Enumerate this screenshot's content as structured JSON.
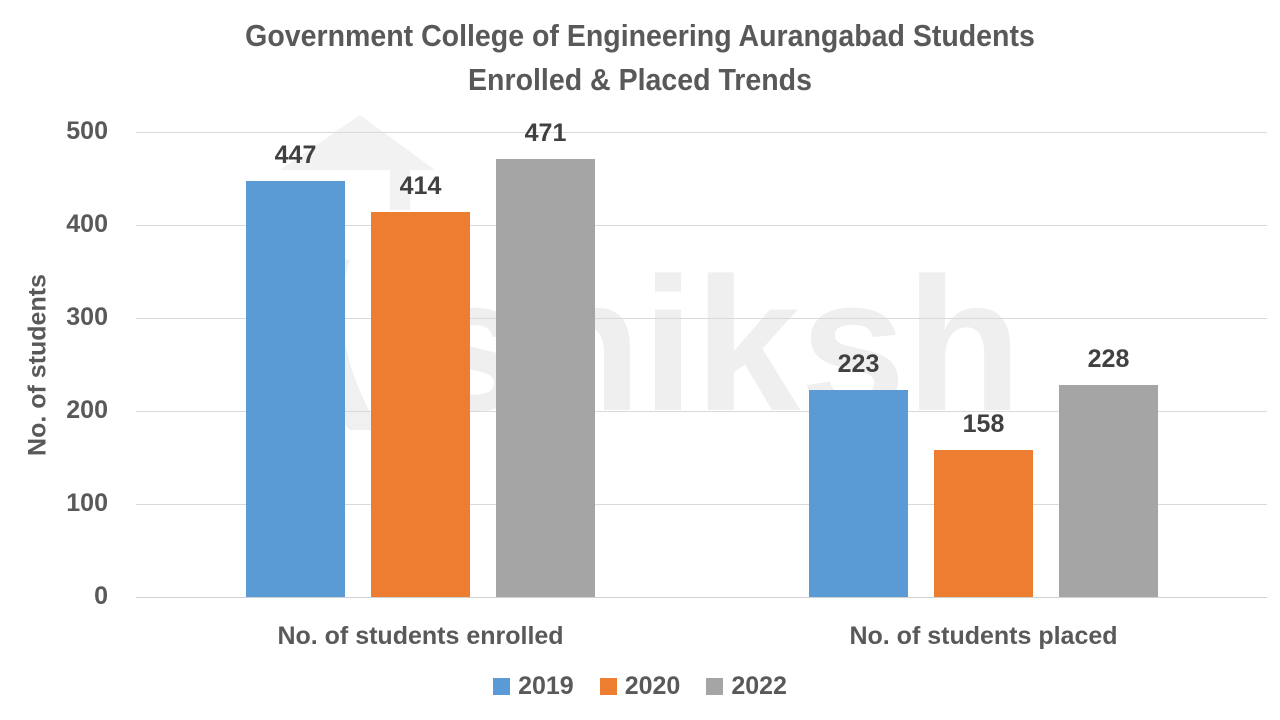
{
  "chart_data": {
    "type": "bar",
    "title": "Government College of Engineering Aurangabad Students Enrolled & Placed Trends",
    "title_lines": [
      "Government College of Engineering Aurangabad Students",
      "Enrolled & Placed Trends"
    ],
    "xlabel": "",
    "ylabel": "No. of students",
    "ylim": [
      0,
      500
    ],
    "yticks": [
      0,
      100,
      200,
      300,
      400,
      500
    ],
    "grid": true,
    "legend_position": "bottom",
    "categories": [
      "No. of students enrolled",
      "No. of students placed"
    ],
    "series": [
      {
        "name": "2019",
        "color": "#5b9bd5",
        "values": [
          447,
          223
        ]
      },
      {
        "name": "2020",
        "color": "#ed7d31",
        "values": [
          414,
          158
        ]
      },
      {
        "name": "2022",
        "color": "#a5a5a5",
        "values": [
          471,
          228
        ]
      }
    ]
  },
  "watermark": {
    "text": "shiksha"
  }
}
